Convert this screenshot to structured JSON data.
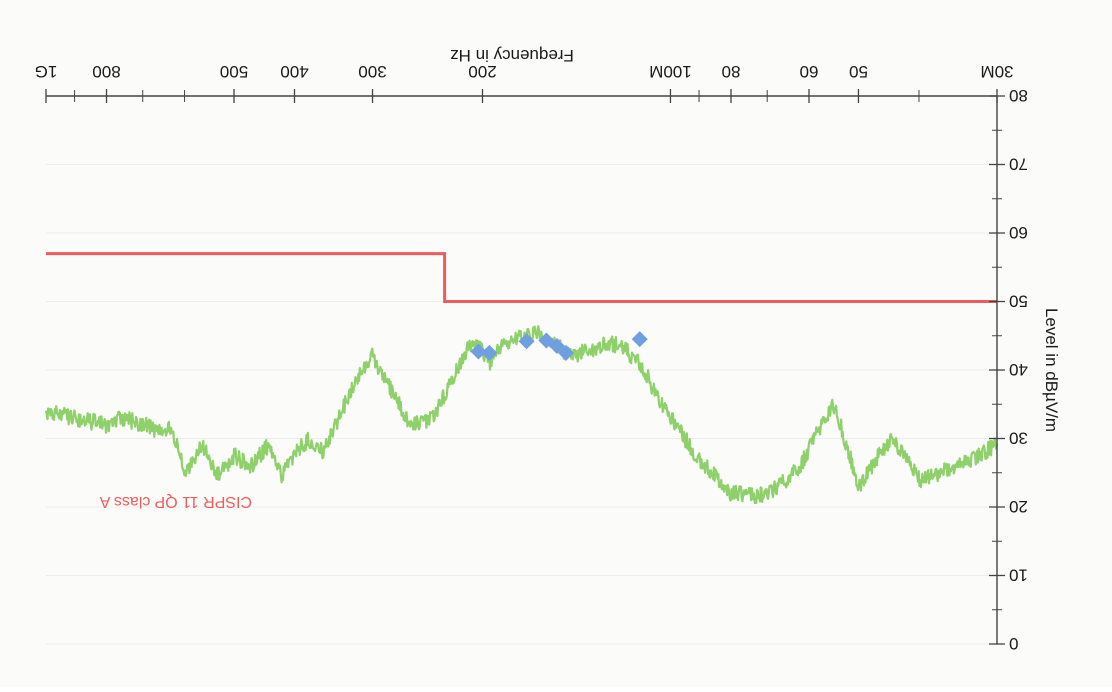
{
  "chart_data": {
    "type": "line",
    "orientation": "rotated-180",
    "xlabel": "Frequency in Hz",
    "ylabel": "Level in dBµV/m",
    "x_scale": "log",
    "xlim": [
      30,
      1000
    ],
    "ylim": [
      0,
      80
    ],
    "x_ticks": [
      {
        "value": 30,
        "label": "30M"
      },
      {
        "value": 50,
        "label": "50"
      },
      {
        "value": 60,
        "label": "60"
      },
      {
        "value": 80,
        "label": "80"
      },
      {
        "value": 100,
        "label": "100M"
      },
      {
        "value": 200,
        "label": "200"
      },
      {
        "value": 300,
        "label": "300"
      },
      {
        "value": 400,
        "label": "400"
      },
      {
        "value": 500,
        "label": "500"
      },
      {
        "value": 800,
        "label": "800"
      },
      {
        "value": 1000,
        "label": "1G"
      }
    ],
    "x_minor_ticks": [
      40,
      70,
      90,
      600,
      700,
      900
    ],
    "y_ticks": [
      {
        "value": 0,
        "label": "0"
      },
      {
        "value": 10,
        "label": "10"
      },
      {
        "value": 20,
        "label": "20"
      },
      {
        "value": 30,
        "label": "30"
      },
      {
        "value": 40,
        "label": "40"
      },
      {
        "value": 50,
        "label": "50"
      },
      {
        "value": 60,
        "label": "60"
      },
      {
        "value": 70,
        "label": "70"
      },
      {
        "value": 80,
        "label": "80"
      }
    ],
    "y_minor_ticks": [
      5,
      15,
      25,
      35,
      45,
      55,
      65,
      75
    ],
    "colors": {
      "trace": "#8ed06a",
      "limit": "#ef5b5b",
      "markers": "#6f9fe0",
      "axis": "#444444"
    },
    "series": [
      {
        "name": "",
        "style": "noisy-line",
        "x": [
          30,
          33,
          36,
          40,
          42,
          44,
          46,
          50,
          53,
          55,
          58,
          62,
          67,
          73,
          80,
          90,
          100,
          105,
          110,
          118,
          125,
          135,
          145,
          155,
          165,
          175,
          185,
          195,
          200,
          210,
          220,
          240,
          260,
          280,
          300,
          320,
          340,
          360,
          380,
          400,
          420,
          440,
          470,
          500,
          530,
          560,
          600,
          630,
          650,
          700,
          750,
          800,
          900,
          1000
        ],
        "y": [
          29,
          27,
          25.5,
          24,
          27,
          30,
          28,
          23,
          31,
          35,
          31,
          26,
          23,
          21.5,
          22,
          27,
          33,
          36,
          40,
          43,
          44,
          43,
          42,
          44.5,
          45.5,
          45,
          44,
          41,
          43,
          43.5,
          40,
          33,
          32,
          37,
          42,
          38,
          33,
          28,
          30,
          27.5,
          24.5,
          29,
          26,
          27.5,
          24.5,
          29,
          25,
          32,
          31,
          32,
          33,
          32,
          33,
          34
        ]
      },
      {
        "name": "CISPR 11 QP class A",
        "style": "step",
        "x": [
          30,
          230,
          230,
          1000
        ],
        "y": [
          50,
          50,
          57,
          57
        ]
      }
    ],
    "markers": [
      {
        "x": 112,
        "y": 44.5
      },
      {
        "x": 147,
        "y": 42.5
      },
      {
        "x": 152,
        "y": 43.5
      },
      {
        "x": 158,
        "y": 44.3
      },
      {
        "x": 170,
        "y": 44.2
      },
      {
        "x": 195,
        "y": 42.5
      },
      {
        "x": 203,
        "y": 42.7
      }
    ],
    "annotations": [
      {
        "text": "CISPR 11 QP class A"
      }
    ]
  }
}
